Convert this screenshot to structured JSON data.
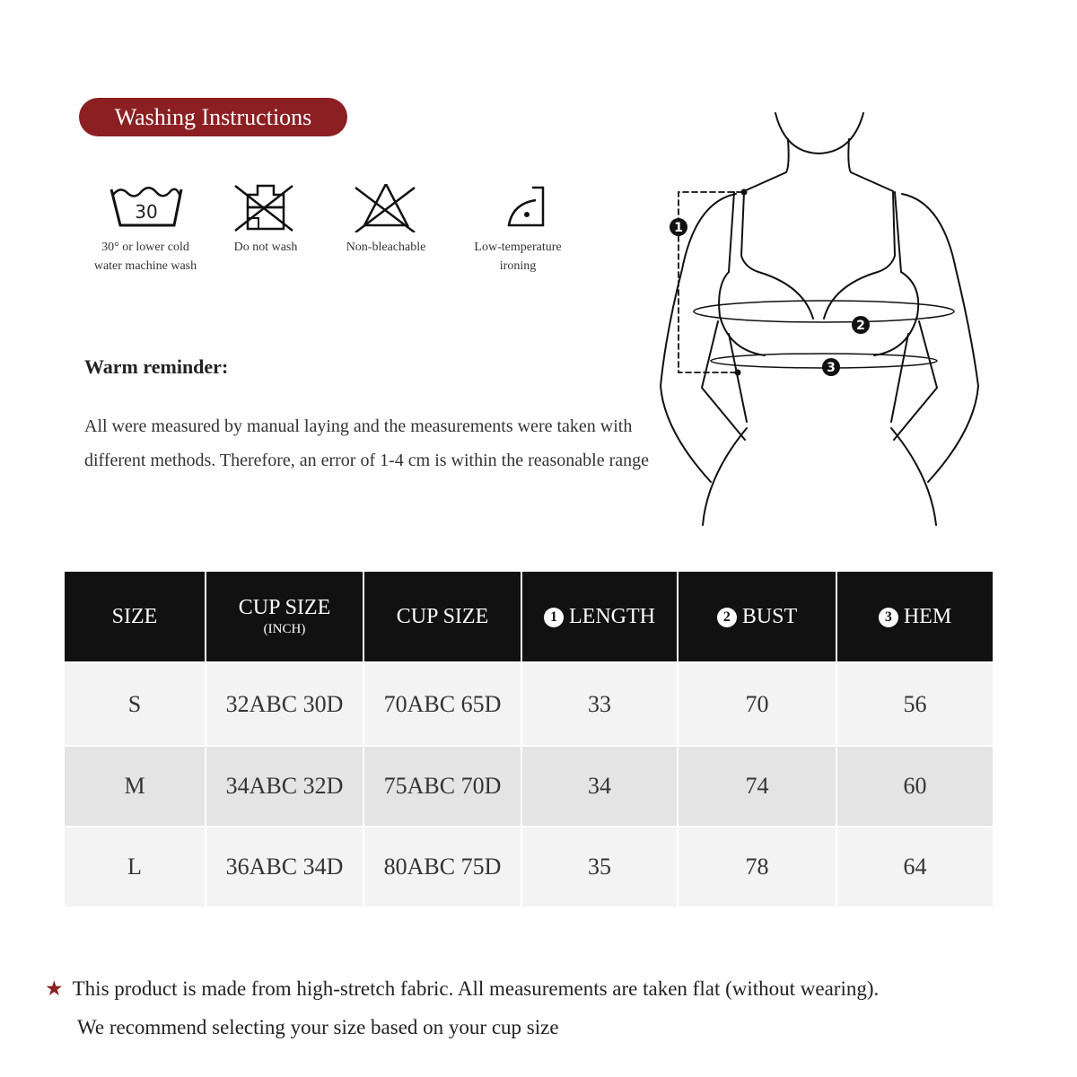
{
  "washing": {
    "title": "Washing Instructions",
    "accent_color": "#8b1f22",
    "items": [
      {
        "icon": "wash-30-icon",
        "icon_text": "30",
        "label_line1": "30° or lower cold",
        "label_line2": "water machine wash"
      },
      {
        "icon": "do-not-wash-icon",
        "label_line1": "Do not wash",
        "label_line2": ""
      },
      {
        "icon": "non-bleach-icon",
        "label_line1": "Non-bleachable",
        "label_line2": ""
      },
      {
        "icon": "low-temp-iron-icon",
        "label_line1": "Low-temperature",
        "label_line2": "ironing"
      }
    ]
  },
  "reminder": {
    "title": "Warm reminder:",
    "text": "All were measured by manual laying and the measurements were taken with different methods. Therefore, an error of 1-4 cm is within the reasonable range"
  },
  "figure": {
    "markers": [
      "1",
      "2",
      "3"
    ]
  },
  "table": {
    "headers": [
      {
        "label": "SIZE",
        "sub": ""
      },
      {
        "label": "CUP SIZE",
        "sub": "(INCH)"
      },
      {
        "label": "CUP SIZE",
        "sub": ""
      },
      {
        "marker": "1",
        "label": "LENGTH"
      },
      {
        "marker": "2",
        "label": "BUST"
      },
      {
        "marker": "3",
        "label": "HEM"
      }
    ],
    "rows": [
      [
        "S",
        "32ABC 30D",
        "70ABC 65D",
        "33",
        "70",
        "56"
      ],
      [
        "M",
        "34ABC 32D",
        "75ABC 70D",
        "34",
        "74",
        "60"
      ],
      [
        "L",
        "36ABC 34D",
        "80ABC 75D",
        "35",
        "78",
        "64"
      ]
    ]
  },
  "note": {
    "star": "★",
    "line1": "This product is made from high-stretch fabric. All measurements are taken flat (without wearing).",
    "line2": "We recommend selecting your size based on your cup size"
  }
}
